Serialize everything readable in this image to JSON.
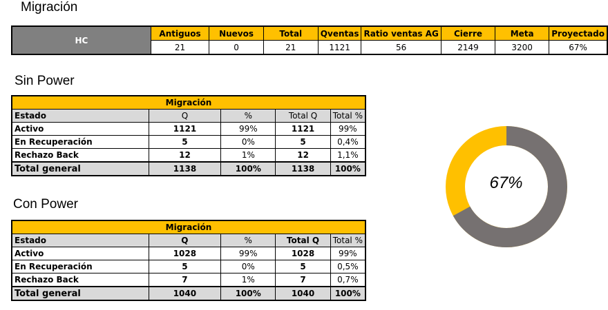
{
  "page_title": "Migración",
  "summary": {
    "hc_label": "HC",
    "headers": [
      "Antiguos",
      "Nuevos",
      "Total",
      "Qventas",
      "Ratio ventas AG",
      "Cierre",
      "Meta",
      "Proyectado"
    ],
    "values": [
      "21",
      "0",
      "21",
      "1121",
      "56",
      "2149",
      "3200",
      "67%"
    ]
  },
  "sin_power": {
    "title": "Sin Power",
    "group_header": "Migración",
    "columns": [
      "Estado",
      "Q",
      "%",
      "Total Q",
      "Total %"
    ],
    "rows": [
      [
        "Activo",
        "1121",
        "99%",
        "1121",
        "99%"
      ],
      [
        "En Recuperación",
        "5",
        "0%",
        "5",
        "0,4%"
      ],
      [
        "Rechazo Back",
        "12",
        "1%",
        "12",
        "1,1%"
      ]
    ],
    "total": [
      "Total general",
      "1138",
      "100%",
      "1138",
      "100%"
    ]
  },
  "con_power": {
    "title": "Con Power",
    "group_header": "Migración",
    "columns": [
      "Estado",
      "Q",
      "%",
      "Total Q",
      "Total %"
    ],
    "rows": [
      [
        "Activo",
        "1028",
        "99%",
        "1028",
        "99%"
      ],
      [
        "En Recuperación",
        "5",
        "0%",
        "5",
        "0,5%"
      ],
      [
        "Rechazo Back",
        "7",
        "1%",
        "7",
        "0,7%"
      ]
    ],
    "total": [
      "Total general",
      "1040",
      "100%",
      "1040",
      "100%"
    ]
  },
  "donut": {
    "label": "67%",
    "value_fraction": 0.67,
    "remaining_color": "#ffc000",
    "filled_color": "#767171"
  },
  "colors": {
    "header_yellow": "#ffc000",
    "hc_gray": "#808080",
    "row_gray": "#d9d9d9"
  }
}
